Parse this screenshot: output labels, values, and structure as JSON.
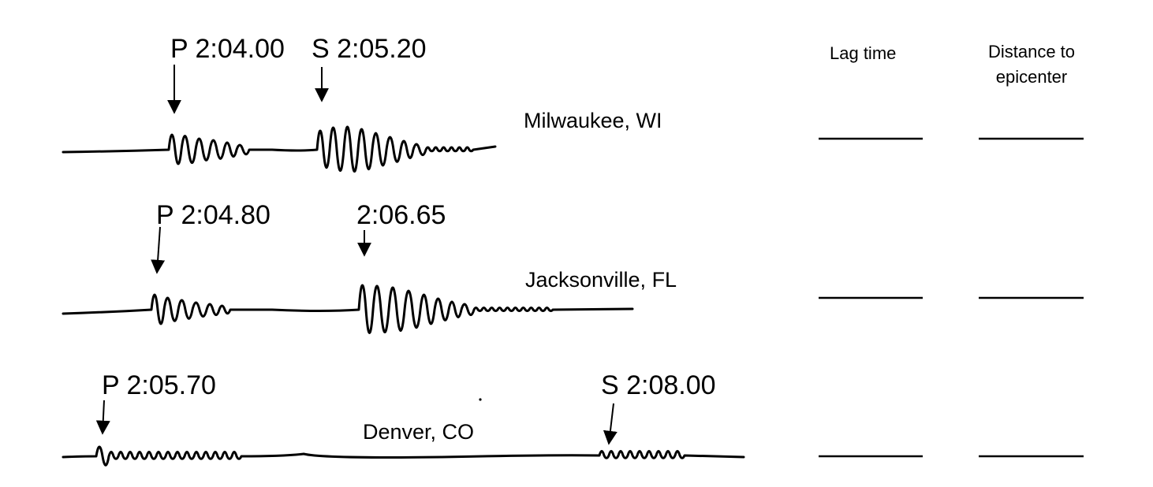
{
  "columns": {
    "lag_time": "Lag time",
    "distance_line1": "Distance to",
    "distance_line2": "epicenter"
  },
  "stations": [
    {
      "city": "Milwaukee, WI",
      "p_label": "P 2:04.00",
      "s_label": "S 2:05.20",
      "p_time": "2:04.00",
      "s_time": "2:05.20"
    },
    {
      "city": "Jacksonville, FL",
      "p_label": "P 2:04.80",
      "s_label": "2:06.65",
      "p_time": "2:04.80",
      "s_time": "2:06.65"
    },
    {
      "city": "Denver, CO",
      "p_label": "P 2:05.70",
      "s_label": "S 2:08.00",
      "p_time": "2:05.70",
      "s_time": "2:08.00"
    }
  ],
  "answer_blanks": {
    "lag_time": [
      "",
      "",
      ""
    ],
    "distance": [
      "",
      "",
      ""
    ]
  }
}
